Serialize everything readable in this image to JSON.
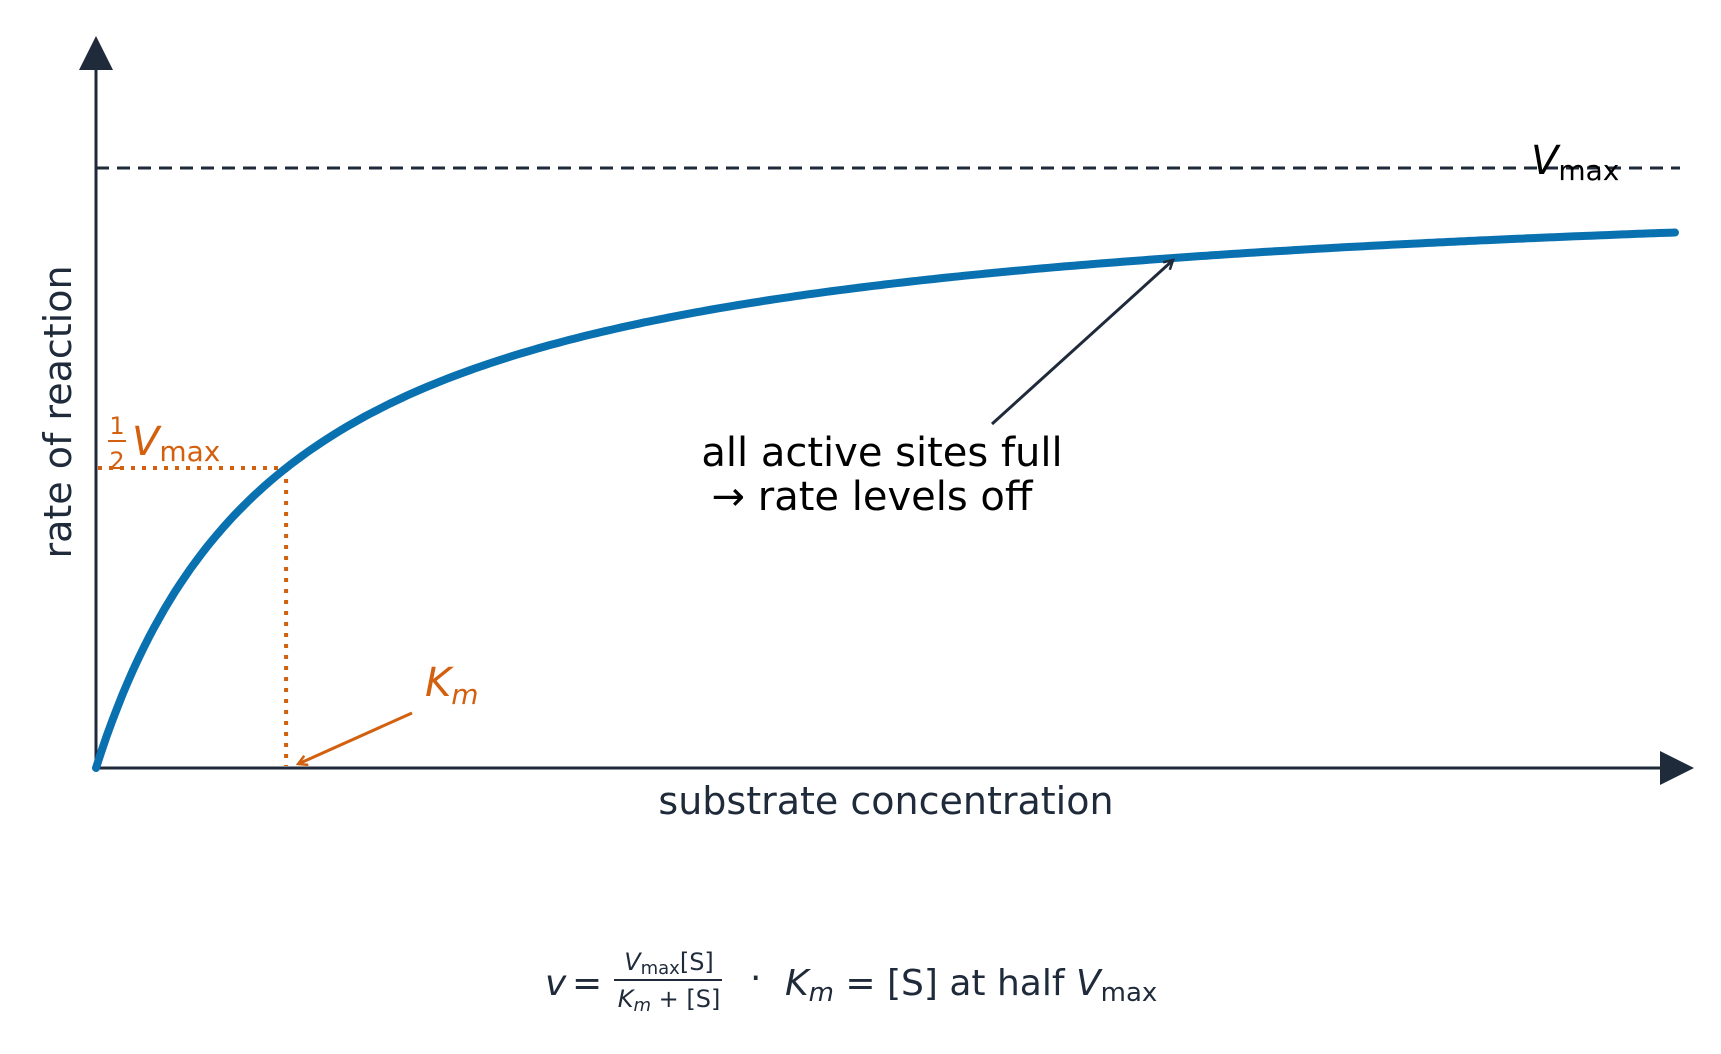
{
  "chart_data": {
    "type": "line",
    "title": "",
    "xlabel": "substrate concentration",
    "ylabel": "rate of reaction",
    "xlim": [
      0,
      15
    ],
    "ylim": [
      0,
      1.2
    ],
    "model": "michaelis-menten",
    "params": {
      "Vmax": 1.0,
      "Km": 1.8
    },
    "grid": false,
    "colors": {
      "curve": "#0a71b0",
      "km": "#d2600f",
      "axis": "#1f2a3a",
      "text": "#000000"
    },
    "reference_line": {
      "value": 1.0,
      "label_symbol": "V",
      "label_sub": "max"
    },
    "half_vmax_label": {
      "frac_num": "1",
      "frac_den": "2",
      "symbol": "V",
      "sub": "max"
    },
    "km_label": {
      "symbol": "K",
      "sub": "m"
    },
    "annotation": {
      "line1": "all active sites full",
      "line2": "→ rate levels off",
      "points_to_x": 10.2
    },
    "formula": {
      "lhs": "v",
      "eq": "=",
      "num": "V",
      "num_sub": "max",
      "num_tail": "[S]",
      "den_K": "K",
      "den_sub": "m",
      "den_tail": " + [S]",
      "sep": "·",
      "rhs_K": "K",
      "rhs_sub": "m",
      "rhs_mid": " = [S] at half ",
      "rhs_V": "V",
      "rhs_V_sub": "max"
    }
  }
}
